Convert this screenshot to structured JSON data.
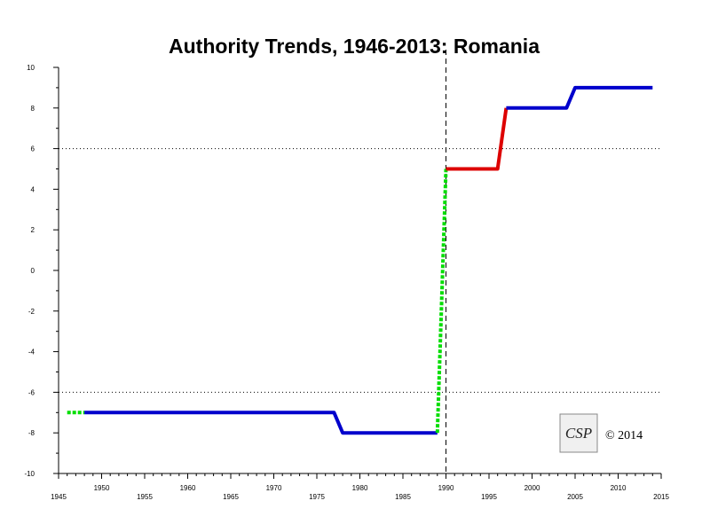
{
  "chart_data": {
    "type": "line",
    "title": "Authority Trends, 1946-2013: Romania",
    "xlabel": "",
    "ylabel": "",
    "xlim": [
      1945,
      2015
    ],
    "ylim": [
      -10,
      10
    ],
    "x_ticks_labeled": [
      1945,
      1950,
      1955,
      1960,
      1965,
      1970,
      1975,
      1980,
      1985,
      1990,
      1995,
      2000,
      2005,
      2010,
      2015
    ],
    "y_ticks": [
      -10,
      -8,
      -6,
      -4,
      -2,
      0,
      2,
      4,
      6,
      8,
      10
    ],
    "reference_lines": {
      "horizontal_dotted": [
        6,
        -6
      ],
      "vertical_dashed": [
        1990
      ]
    },
    "series": [
      {
        "color": "#00dd00",
        "style": "dotted",
        "points": [
          [
            1946,
            -7
          ],
          [
            1948,
            -7
          ]
        ]
      },
      {
        "color": "#0000cc",
        "style": "solid",
        "points": [
          [
            1948,
            -7
          ],
          [
            1977,
            -7
          ],
          [
            1978,
            -8
          ],
          [
            1989,
            -8
          ]
        ]
      },
      {
        "color": "#00dd00",
        "style": "dotted",
        "points": [
          [
            1989,
            -8
          ],
          [
            1990,
            5
          ]
        ]
      },
      {
        "color": "#dd0000",
        "style": "solid",
        "points": [
          [
            1990,
            5
          ],
          [
            1996,
            5
          ],
          [
            1997,
            8
          ]
        ]
      },
      {
        "color": "#0000cc",
        "style": "solid",
        "points": [
          [
            1997,
            8
          ],
          [
            2004,
            8
          ],
          [
            2005,
            9
          ],
          [
            2014,
            9
          ]
        ]
      }
    ],
    "annotations": {
      "copyright": "© 2014",
      "logo_name": "csp-logo",
      "logo_text": "CSP"
    },
    "grid": false
  }
}
